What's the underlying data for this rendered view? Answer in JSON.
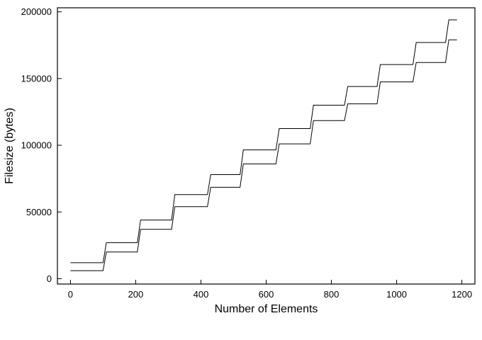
{
  "chart_data": {
    "type": "line",
    "title": "",
    "xlabel": "Number of Elements",
    "ylabel": "Filesize (bytes)",
    "xlim": [
      -40,
      1240
    ],
    "ylim": [
      -4000,
      203000
    ],
    "xticks": [
      0,
      200,
      400,
      600,
      800,
      1000,
      1200
    ],
    "yticks": [
      0,
      50000,
      100000,
      150000,
      200000
    ],
    "xtick_labels": [
      "0",
      "200",
      "400",
      "600",
      "800",
      "1000",
      "1200"
    ],
    "ytick_labels": [
      "0",
      "50000",
      "100000",
      "150000",
      "200000"
    ],
    "grid": false,
    "legend": "none",
    "step_width": 10,
    "series": [
      {
        "points": [
          [
            0,
            12000
          ],
          [
            100,
            12000
          ],
          [
            110,
            27000
          ],
          [
            205,
            27000
          ],
          [
            215,
            44000
          ],
          [
            310,
            44000
          ],
          [
            320,
            63000
          ],
          [
            420,
            63000
          ],
          [
            430,
            78000
          ],
          [
            520,
            78000
          ],
          [
            530,
            96500
          ],
          [
            630,
            96500
          ],
          [
            640,
            112500
          ],
          [
            735,
            112500
          ],
          [
            745,
            130000
          ],
          [
            840,
            130000
          ],
          [
            850,
            144000
          ],
          [
            940,
            144000
          ],
          [
            950,
            160500
          ],
          [
            1050,
            160500
          ],
          [
            1060,
            177000
          ],
          [
            1150,
            177000
          ],
          [
            1160,
            194000
          ],
          [
            1185,
            194000
          ]
        ]
      },
      {
        "points": [
          [
            0,
            6000
          ],
          [
            100,
            6000
          ],
          [
            110,
            20000
          ],
          [
            205,
            20000
          ],
          [
            215,
            37000
          ],
          [
            310,
            37000
          ],
          [
            320,
            54000
          ],
          [
            420,
            54000
          ],
          [
            430,
            68500
          ],
          [
            520,
            68500
          ],
          [
            530,
            86000
          ],
          [
            630,
            86000
          ],
          [
            640,
            101000
          ],
          [
            735,
            101000
          ],
          [
            745,
            118500
          ],
          [
            840,
            118500
          ],
          [
            850,
            131000
          ],
          [
            940,
            131000
          ],
          [
            950,
            147500
          ],
          [
            1050,
            147500
          ],
          [
            1060,
            162000
          ],
          [
            1150,
            162000
          ],
          [
            1160,
            179000
          ],
          [
            1185,
            179000
          ]
        ]
      }
    ]
  }
}
